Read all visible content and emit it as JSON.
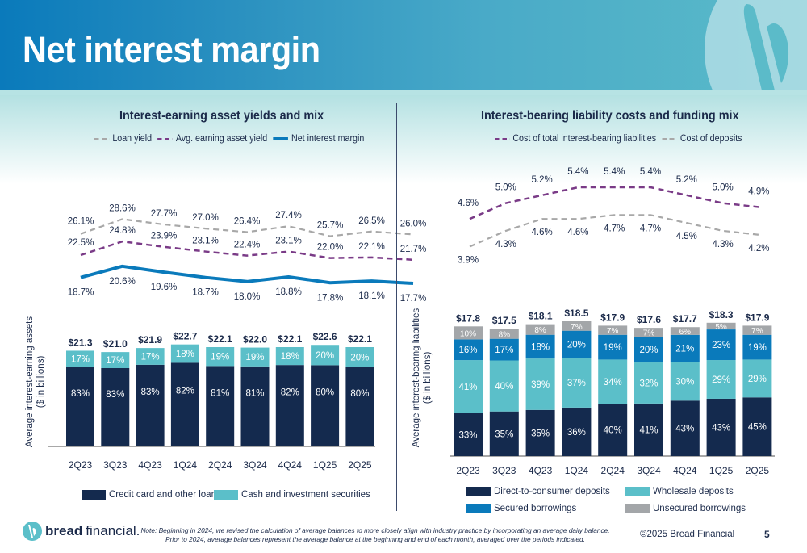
{
  "page": {
    "title": "Net interest margin",
    "page_number": "5",
    "copyright": "©2025 Bread Financial",
    "logo_text_bold": "bread",
    "logo_text_light": "financial.",
    "note_line1": "Note: Beginning in 2024, we revised the calculation of average balances to more closely align with industry practice by incorporating an average daily balance.",
    "note_line2": "Prior to 2024, average balances represent the average balance at the beginning and end of each month, averaged over the periods indicated."
  },
  "colors": {
    "navy": "#142a4e",
    "teal": "#5bbfc9",
    "blue": "#0a7abb",
    "gray": "#a3a6a9",
    "purple": "#7a3b87",
    "loan_gray": "#a8a8a8"
  },
  "left": {
    "title": "Interest-earning asset yields and mix",
    "legend": [
      "Loan yield",
      "Avg. earning asset yield",
      "Net interest margin"
    ],
    "ylabel_line1": "Average interest-earning assets",
    "ylabel_line2": "($ in billions)",
    "bar_legend": [
      "Credit card and other loans",
      "Cash and investment securities"
    ]
  },
  "right": {
    "title": "Interest-bearing liability costs and funding mix",
    "legend": [
      "Cost of total interest-bearing liabilities",
      "Cost of deposits"
    ],
    "ylabel_line1": "Average interest-bearing liabilities",
    "ylabel_line2": "($ in billions)",
    "bar_legend": [
      "Direct-to-consumer deposits",
      "Wholesale deposits",
      "Secured borrowings",
      "Unsecured borrowings"
    ]
  },
  "chart_data": [
    {
      "type": "line",
      "title": "Interest-earning asset yields",
      "x": [
        "2Q23",
        "3Q23",
        "4Q23",
        "1Q24",
        "2Q24",
        "3Q24",
        "4Q24",
        "1Q25",
        "2Q25"
      ],
      "series": [
        {
          "name": "Loan yield",
          "style": "dashed-gray",
          "values": [
            26.1,
            28.6,
            27.7,
            27.0,
            26.4,
            27.4,
            25.7,
            26.5,
            26.0
          ],
          "labels": [
            "26.1%",
            "28.6%",
            "27.7%",
            "27.0%",
            "26.4%",
            "27.4%",
            "25.7%",
            "26.5%",
            "26.0%"
          ]
        },
        {
          "name": "Avg. earning asset yield",
          "style": "dashed-purple",
          "values": [
            22.5,
            24.8,
            23.9,
            23.1,
            22.4,
            23.1,
            22.0,
            22.1,
            21.7
          ],
          "labels": [
            "22.5%",
            "24.8%",
            "23.9%",
            "23.1%",
            "22.4%",
            "23.1%",
            "22.0%",
            "22.1%",
            "21.7%"
          ]
        },
        {
          "name": "Net interest margin",
          "style": "solid-blue",
          "values": [
            18.7,
            20.6,
            19.6,
            18.7,
            18.0,
            18.8,
            17.8,
            18.1,
            17.7
          ],
          "labels": [
            "18.7%",
            "20.6%",
            "19.6%",
            "18.7%",
            "18.0%",
            "18.8%",
            "17.8%",
            "18.1%",
            "17.7%"
          ]
        }
      ]
    },
    {
      "type": "bar",
      "stacked": true,
      "title": "Average interest-earning assets ($ in billions)",
      "categories": [
        "2Q23",
        "3Q23",
        "4Q23",
        "1Q24",
        "2Q24",
        "3Q24",
        "4Q24",
        "1Q25",
        "2Q25"
      ],
      "totals": [
        21.3,
        21.0,
        21.9,
        22.7,
        22.1,
        22.0,
        22.1,
        22.6,
        22.1
      ],
      "total_labels": [
        "$21.3",
        "$21.0",
        "$21.9",
        "$22.7",
        "$22.1",
        "$22.0",
        "$22.1",
        "$22.6",
        "$22.1"
      ],
      "series": [
        {
          "name": "Credit card and other loans",
          "color": "#142a4e",
          "values": [
            83,
            83,
            83,
            82,
            81,
            81,
            82,
            80,
            80
          ]
        },
        {
          "name": "Cash and investment securities",
          "color": "#5bbfc9",
          "values": [
            17,
            17,
            17,
            18,
            19,
            19,
            18,
            20,
            20
          ]
        }
      ],
      "ylabel": "Average interest-earning assets ($ in billions)"
    },
    {
      "type": "line",
      "title": "Interest-bearing liability costs",
      "x": [
        "2Q23",
        "3Q23",
        "4Q23",
        "1Q24",
        "2Q24",
        "3Q24",
        "4Q24",
        "1Q25",
        "2Q25"
      ],
      "series": [
        {
          "name": "Cost of total interest-bearing liabilities",
          "style": "dashed-purple",
          "values": [
            4.6,
            5.0,
            5.2,
            5.4,
            5.4,
            5.4,
            5.2,
            5.0,
            4.9
          ],
          "labels": [
            "4.6%",
            "5.0%",
            "5.2%",
            "5.4%",
            "5.4%",
            "5.4%",
            "5.2%",
            "5.0%",
            "4.9%"
          ]
        },
        {
          "name": "Cost of deposits",
          "style": "dashed-gray",
          "values": [
            3.9,
            4.3,
            4.6,
            4.6,
            4.7,
            4.7,
            4.5,
            4.3,
            4.2
          ],
          "labels": [
            "3.9%",
            "4.3%",
            "4.6%",
            "4.6%",
            "4.7%",
            "4.7%",
            "4.5%",
            "4.3%",
            "4.2%"
          ]
        }
      ]
    },
    {
      "type": "bar",
      "stacked": true,
      "title": "Average interest-bearing liabilities ($ in billions)",
      "categories": [
        "2Q23",
        "3Q23",
        "4Q23",
        "1Q24",
        "2Q24",
        "3Q24",
        "4Q24",
        "1Q25",
        "2Q25"
      ],
      "totals": [
        17.8,
        17.5,
        18.1,
        18.5,
        17.9,
        17.6,
        17.7,
        18.3,
        17.9
      ],
      "total_labels": [
        "$17.8",
        "$17.5",
        "$18.1",
        "$18.5",
        "$17.9",
        "$17.6",
        "$17.7",
        "$18.3",
        "$17.9"
      ],
      "series": [
        {
          "name": "Direct-to-consumer deposits",
          "color": "#142a4e",
          "values": [
            33,
            35,
            35,
            36,
            40,
            41,
            43,
            43,
            45
          ]
        },
        {
          "name": "Wholesale deposits",
          "color": "#5bbfc9",
          "values": [
            41,
            40,
            39,
            37,
            34,
            32,
            30,
            29,
            29
          ]
        },
        {
          "name": "Secured borrowings",
          "color": "#0a7abb",
          "values": [
            16,
            17,
            18,
            20,
            19,
            20,
            21,
            23,
            19
          ]
        },
        {
          "name": "Unsecured borrowings",
          "color": "#a3a6a9",
          "values": [
            10,
            8,
            8,
            7,
            7,
            7,
            6,
            5,
            7
          ]
        }
      ],
      "ylabel": "Average interest-bearing liabilities ($ in billions)"
    }
  ]
}
